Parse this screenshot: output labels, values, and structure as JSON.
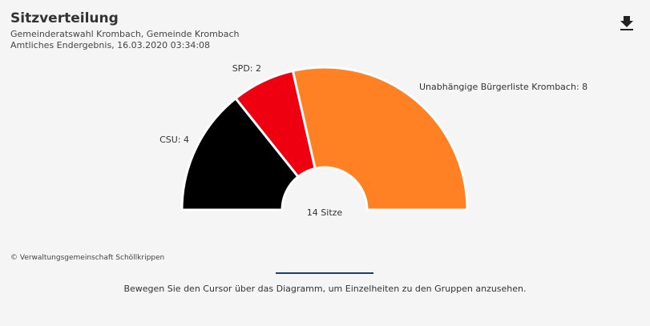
{
  "header": {
    "title": "Sitzverteilung",
    "subtitle": "Gemeinderatswahl Krombach, Gemeinde Krombach",
    "status": "Amtliches Endergebnis, 16.03.2020 03:34:08",
    "download_icon": "download-icon"
  },
  "chart_data": {
    "type": "pie",
    "variant": "semicircle-donut",
    "categories": [
      "CSU",
      "SPD",
      "Unabhängige Bürgerliste Krombach"
    ],
    "values": [
      4,
      2,
      8
    ],
    "labels": [
      "CSU: 4",
      "SPD: 2",
      "Unabhängige Bürgerliste Krombach: 8"
    ],
    "colors": [
      "#000000",
      "#ee0010",
      "#ff8124"
    ],
    "center_label": "14 Sitze"
  },
  "footer": {
    "credit": "© Verwaltungsgemeinschaft Schöllkrippen",
    "hint": "Bewegen Sie den Cursor über das Diagramm, um Einzelheiten zu den Gruppen anzusehen."
  }
}
